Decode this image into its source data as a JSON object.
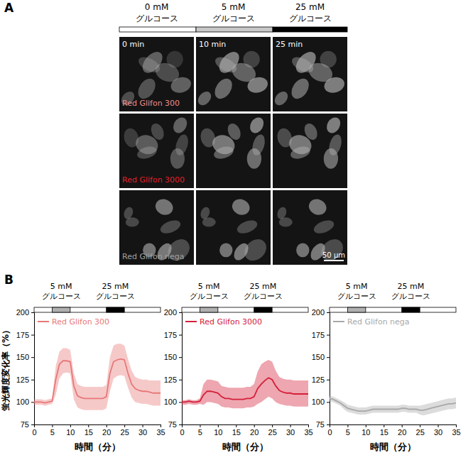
{
  "panel_a": {
    "label": "A",
    "conditions": [
      {
        "label": "0 mM グルコース",
        "color": "#ffffff"
      },
      {
        "label": "5 mM グルコース",
        "color": "#c8c8c8"
      },
      {
        "label": "25 mM グルコース",
        "color": "#000000"
      }
    ],
    "times": [
      "0 min",
      "10 min",
      "25 min"
    ],
    "rows": [
      {
        "name": "Red Glifon 300",
        "color": "#f08a8a"
      },
      {
        "name": "Red Glifon 3000",
        "color": "#e0202a"
      },
      {
        "name": "Red Glifon nega",
        "color": "#a0a0a0"
      }
    ],
    "scale_bar": "50 µm"
  },
  "panel_b": {
    "label": "B"
  },
  "chart_data": [
    {
      "type": "line",
      "xlabel": "時間（分）",
      "ylabel": "蛍光輝度変化率（%）",
      "xlim": [
        0,
        35
      ],
      "ylim": [
        75,
        200
      ],
      "xticks": [
        0,
        5,
        10,
        15,
        20,
        25,
        30,
        35
      ],
      "yticks": [
        75,
        100,
        125,
        150,
        175,
        200
      ],
      "legend": "upper left",
      "stimuli": [
        {
          "label": "5 mM グルコース",
          "start": 5,
          "end": 10,
          "color": "#b0b0b0"
        },
        {
          "label": "25 mM グルコース",
          "start": 20,
          "end": 25,
          "color": "#000000"
        }
      ],
      "x": [
        0,
        1,
        2,
        3,
        4,
        5,
        6,
        7,
        8,
        9,
        10,
        11,
        12,
        13,
        14,
        15,
        16,
        17,
        18,
        19,
        20,
        21,
        22,
        23,
        24,
        25,
        26,
        27,
        28,
        29,
        30,
        31,
        32,
        33,
        34,
        35
      ],
      "series": [
        {
          "name": "Red Glifon 300",
          "color": "#e87878",
          "values": [
            100,
            100,
            100,
            99,
            100,
            101,
            125,
            142,
            146,
            146,
            145,
            118,
            107,
            105,
            104,
            104,
            104,
            104,
            104,
            104,
            106,
            132,
            145,
            147,
            148,
            147,
            132,
            120,
            115,
            113,
            112,
            112,
            111,
            110,
            110,
            110
          ],
          "upper": [
            103,
            103,
            103,
            102,
            103,
            104,
            140,
            156,
            160,
            160,
            158,
            132,
            120,
            118,
            117,
            117,
            117,
            117,
            117,
            117,
            119,
            150,
            163,
            165,
            165,
            163,
            148,
            135,
            128,
            126,
            125,
            125,
            124,
            124,
            124,
            124
          ],
          "lower": [
            97,
            97,
            97,
            96,
            97,
            98,
            108,
            126,
            132,
            133,
            132,
            103,
            94,
            92,
            91,
            91,
            91,
            91,
            91,
            91,
            93,
            112,
            126,
            129,
            130,
            129,
            116,
            105,
            100,
            99,
            98,
            98,
            97,
            96,
            96,
            96
          ]
        }
      ]
    },
    {
      "type": "line",
      "xlabel": "時間（分）",
      "xlim": [
        0,
        35
      ],
      "ylim": [
        75,
        200
      ],
      "xticks": [
        0,
        5,
        10,
        15,
        20,
        25,
        30,
        35
      ],
      "yticks": [
        75,
        100,
        125,
        150,
        175,
        200
      ],
      "legend": "upper left",
      "stimuli": [
        {
          "label": "5 mM グルコース",
          "start": 5,
          "end": 10,
          "color": "#b0b0b0"
        },
        {
          "label": "25 mM グルコース",
          "start": 20,
          "end": 25,
          "color": "#000000"
        }
      ],
      "x": [
        0,
        1,
        2,
        3,
        4,
        5,
        6,
        7,
        8,
        9,
        10,
        11,
        12,
        13,
        14,
        15,
        16,
        17,
        18,
        19,
        20,
        21,
        22,
        23,
        24,
        25,
        26,
        27,
        28,
        29,
        30,
        31,
        32,
        33,
        34,
        35
      ],
      "series": [
        {
          "name": "Red Glifon 3000",
          "color": "#d4203a",
          "values": [
            100,
            100,
            101,
            100,
            100,
            101,
            108,
            112,
            112,
            111,
            110,
            106,
            104,
            104,
            103,
            103,
            103,
            103,
            104,
            104,
            106,
            115,
            120,
            124,
            127,
            125,
            118,
            113,
            111,
            110,
            110,
            109,
            109,
            109,
            109,
            109
          ],
          "upper": [
            102,
            102,
            103,
            102,
            102,
            104,
            120,
            125,
            125,
            124,
            123,
            118,
            117,
            116,
            116,
            116,
            116,
            116,
            117,
            117,
            120,
            134,
            142,
            145,
            147,
            145,
            135,
            128,
            126,
            125,
            125,
            124,
            124,
            124,
            124,
            124
          ],
          "lower": [
            97,
            97,
            98,
            97,
            97,
            98,
            97,
            100,
            100,
            99,
            98,
            95,
            94,
            94,
            93,
            93,
            93,
            93,
            94,
            94,
            95,
            98,
            100,
            103,
            106,
            104,
            100,
            98,
            97,
            96,
            96,
            95,
            95,
            95,
            95,
            95
          ]
        }
      ]
    },
    {
      "type": "line",
      "xlabel": "時間（分）",
      "xlim": [
        0,
        35
      ],
      "ylim": [
        75,
        200
      ],
      "xticks": [
        0,
        5,
        10,
        15,
        20,
        25,
        30,
        35
      ],
      "yticks": [
        75,
        100,
        125,
        150,
        175,
        200
      ],
      "legend": "upper left",
      "stimuli": [
        {
          "label": "5 mM グルコース",
          "start": 5,
          "end": 10,
          "color": "#b0b0b0"
        },
        {
          "label": "25 mM グルコース",
          "start": 20,
          "end": 25,
          "color": "#000000"
        }
      ],
      "x": [
        0,
        1,
        2,
        3,
        4,
        5,
        6,
        7,
        8,
        9,
        10,
        11,
        12,
        13,
        14,
        15,
        16,
        17,
        18,
        19,
        20,
        21,
        22,
        23,
        24,
        25,
        26,
        27,
        28,
        29,
        30,
        31,
        32,
        33,
        34,
        35
      ],
      "series": [
        {
          "name": "Red Glifon nega",
          "color": "#a8a8a8",
          "values": [
            104,
            103,
            101,
            99,
            96,
            93,
            92,
            91,
            90,
            90,
            90,
            91,
            92,
            92,
            92,
            92,
            92,
            92,
            92,
            92,
            93,
            93,
            92,
            92,
            92,
            91,
            91,
            92,
            93,
            94,
            95,
            96,
            97,
            98,
            98,
            99
          ],
          "upper": [
            107,
            106,
            104,
            102,
            100,
            97,
            96,
            95,
            94,
            94,
            94,
            95,
            96,
            96,
            96,
            96,
            96,
            96,
            96,
            96,
            97,
            97,
            96,
            96,
            96,
            96,
            97,
            98,
            99,
            100,
            101,
            102,
            103,
            104,
            104,
            105
          ],
          "lower": [
            101,
            100,
            98,
            96,
            92,
            89,
            88,
            87,
            86,
            86,
            86,
            87,
            88,
            88,
            88,
            88,
            88,
            88,
            88,
            88,
            89,
            89,
            88,
            88,
            88,
            86,
            85,
            86,
            87,
            88,
            89,
            90,
            91,
            92,
            92,
            93
          ]
        }
      ]
    }
  ]
}
